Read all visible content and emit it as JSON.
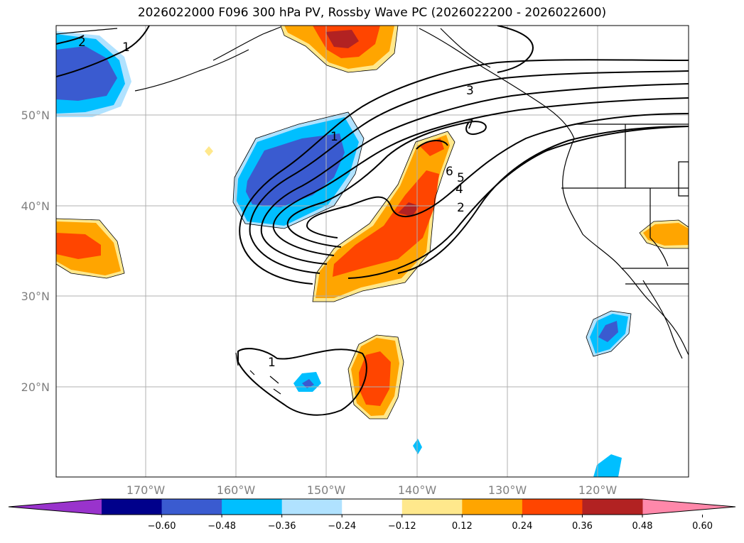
{
  "title": "2026022000 F096 300 hPa PV, Rossby Wave PC (2026022200 - 2026022600)",
  "map": {
    "lat_labels": [
      "50°N",
      "40°N",
      "30°N",
      "20°N"
    ],
    "lon_labels": [
      "170°W",
      "160°W",
      "150°W",
      "140°W",
      "130°W",
      "120°W"
    ],
    "contour_labels": [
      "2",
      "1",
      "3",
      "7",
      "1",
      "6",
      "5",
      "4",
      "2",
      "1"
    ]
  },
  "colorbar": {
    "ticks": [
      "−0.60",
      "−0.48",
      "−0.36",
      "−0.24",
      "−0.12",
      "0.12",
      "0.24",
      "0.36",
      "0.48",
      "0.60"
    ],
    "colors": [
      "#9933cc",
      "#00008b",
      "#3a5bd0",
      "#00bfff",
      "#b0e2ff",
      "#ffffff",
      "#ffe88c",
      "#ffa500",
      "#ff4500",
      "#b22222",
      "#ff88aa"
    ]
  }
}
